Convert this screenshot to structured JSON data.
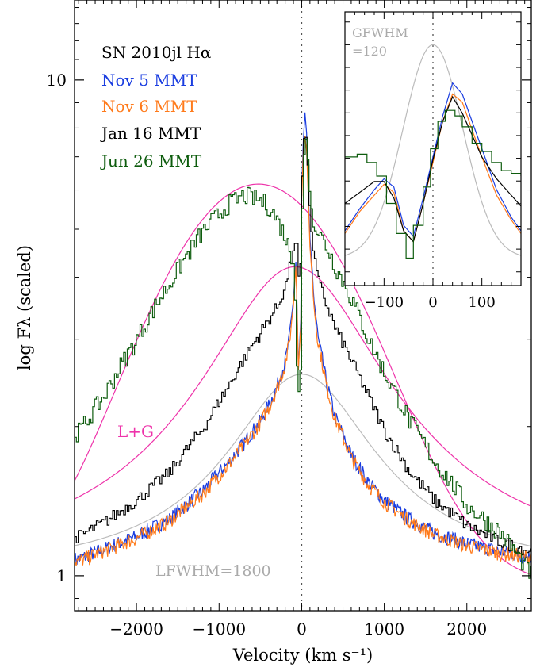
{
  "chart_data": [
    {
      "type": "line",
      "title": "SN 2010jl Hα",
      "xlabel": "Velocity (km s⁻¹)",
      "ylabel": "log Fλ (scaled)",
      "xlim": [
        -2750,
        2780
      ],
      "ylim": [
        0.85,
        14.5
      ],
      "y_scale": "log",
      "x_ticks": [
        "−2000",
        "−1000",
        "0",
        "1000",
        "2000"
      ],
      "y_ticks": [
        "1",
        "10"
      ],
      "legend_position": "top-left",
      "annotations": {
        "fit_label": "L+G",
        "lorentzian_label": "LFWHM=1800",
        "zero_line": 0
      },
      "series": [
        {
          "name": "Nov 5 MMT",
          "color": "#1a3de0",
          "x": [
            -2700,
            -2400,
            -2000,
            -1600,
            -1200,
            -900,
            -700,
            -500,
            -400,
            -300,
            -200,
            -150,
            -100,
            -70,
            -40,
            -10,
            0,
            20,
            40,
            60,
            80,
            100,
            150,
            200,
            300,
            400,
            600,
            800,
            1000,
            1300,
            1600,
            2000,
            2400,
            2780
          ],
          "y": [
            1.08,
            1.13,
            1.2,
            1.3,
            1.48,
            1.68,
            1.85,
            2.05,
            2.2,
            2.4,
            2.7,
            3.0,
            3.6,
            4.3,
            2.6,
            3.3,
            6.0,
            7.5,
            8.6,
            7.8,
            6.0,
            4.8,
            3.6,
            3.0,
            2.45,
            2.1,
            1.75,
            1.55,
            1.42,
            1.3,
            1.22,
            1.16,
            1.12,
            1.09
          ]
        },
        {
          "name": "Nov 6 MMT",
          "color": "#ff7a1a",
          "x": [
            -2700,
            -2400,
            -2000,
            -1600,
            -1200,
            -900,
            -700,
            -500,
            -400,
            -300,
            -200,
            -150,
            -100,
            -70,
            -40,
            -10,
            0,
            20,
            40,
            60,
            80,
            100,
            150,
            200,
            300,
            400,
            600,
            800,
            1000,
            1300,
            1600,
            2000,
            2400,
            2780
          ],
          "y": [
            1.07,
            1.12,
            1.19,
            1.29,
            1.46,
            1.66,
            1.83,
            2.03,
            2.18,
            2.38,
            2.66,
            2.95,
            3.5,
            4.2,
            2.6,
            3.2,
            5.7,
            7.2,
            7.7,
            7.2,
            5.8,
            4.6,
            3.5,
            2.95,
            2.42,
            2.08,
            1.73,
            1.53,
            1.41,
            1.29,
            1.21,
            1.15,
            1.11,
            1.09
          ]
        },
        {
          "name": "Jan 16 MMT",
          "color": "#000000",
          "x": [
            -2700,
            -2400,
            -2000,
            -1600,
            -1200,
            -900,
            -700,
            -500,
            -400,
            -300,
            -200,
            -150,
            -100,
            -70,
            -40,
            -10,
            0,
            20,
            40,
            60,
            80,
            100,
            150,
            200,
            300,
            400,
            600,
            800,
            1000,
            1300,
            1600,
            2000,
            2400,
            2780
          ],
          "y": [
            1.2,
            1.28,
            1.42,
            1.62,
            1.98,
            2.4,
            2.75,
            3.1,
            3.3,
            3.5,
            3.85,
            4.2,
            4.6,
            4.8,
            3.9,
            4.5,
            6.4,
            7.6,
            7.8,
            7.1,
            5.9,
            5.1,
            4.3,
            3.9,
            3.5,
            3.15,
            2.7,
            2.3,
            1.95,
            1.62,
            1.42,
            1.26,
            1.17,
            1.12
          ]
        },
        {
          "name": "Jun 26 MMT",
          "color": "#0d5c0d",
          "x": [
            -2700,
            -2400,
            -2000,
            -1600,
            -1200,
            -900,
            -700,
            -500,
            -400,
            -300,
            -200,
            -150,
            -100,
            -70,
            -40,
            -10,
            0,
            20,
            40,
            60,
            80,
            100,
            150,
            200,
            300,
            400,
            600,
            800,
            1000,
            1300,
            1600,
            2000,
            2400,
            2780
          ],
          "y": [
            1.95,
            2.3,
            3.0,
            3.9,
            4.95,
            5.6,
            5.85,
            5.7,
            5.55,
            5.2,
            4.8,
            4.5,
            4.2,
            2.7,
            2.3,
            2.8,
            5.5,
            7.0,
            7.7,
            7.2,
            6.2,
            5.6,
            5.1,
            4.9,
            4.6,
            4.2,
            3.6,
            3.0,
            2.55,
            2.05,
            1.7,
            1.38,
            1.22,
            1.0
          ]
        },
        {
          "name": "L+G fit",
          "color": "#ee33aa",
          "x": [],
          "y": []
        },
        {
          "name": "Lorentzian",
          "color": "#bbbbbb",
          "x": [],
          "y": []
        }
      ]
    },
    {
      "type": "line",
      "title": "",
      "xlim": [
        -180,
        180
      ],
      "x_ticks": [
        "−100",
        "0",
        "100"
      ],
      "annotations": {
        "label_line1": "GFWHM",
        "label_line2": "=120"
      },
      "series": [
        {
          "name": "Nov 5 MMT",
          "color": "#1a3de0"
        },
        {
          "name": "Nov 6 MMT",
          "color": "#ff7a1a"
        },
        {
          "name": "Jan 16 MMT",
          "color": "#000000"
        },
        {
          "name": "Jun 26 MMT",
          "color": "#0d5c0d"
        },
        {
          "name": "Gaussian",
          "color": "#bbbbbb"
        }
      ]
    }
  ],
  "colors": {
    "nov5": "#1a3de0",
    "nov6": "#ff7a1a",
    "jan16": "#000000",
    "jun26": "#0d5c0d",
    "fit": "#ee33aa",
    "model": "#bbbbbb"
  }
}
